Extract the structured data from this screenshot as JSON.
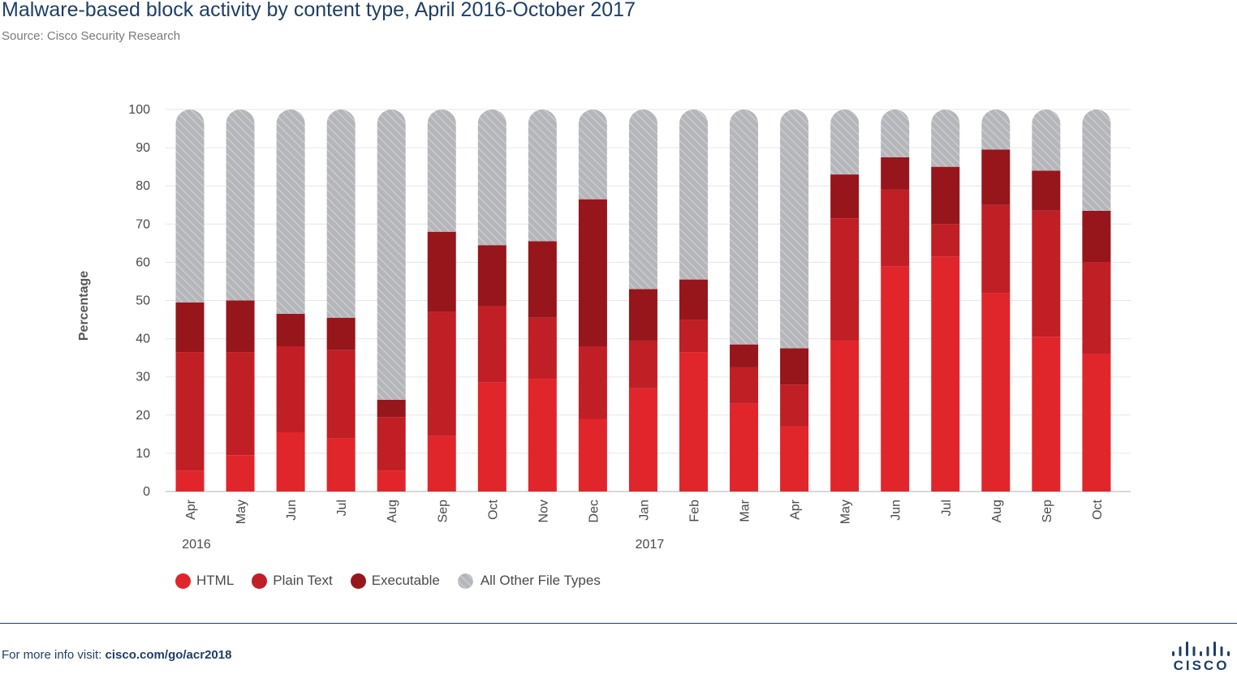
{
  "title": "Malware-based block activity by content type, April 2016-October 2017",
  "source": "Source: Cisco Security Research",
  "footer": {
    "prefix": "For more info visit: ",
    "link": "cisco.com/go/acr2018"
  },
  "logo": {
    "text": "CISCO"
  },
  "colors": {
    "html": "#e0262b",
    "plain_text": "#c01f25",
    "executable": "#96161b",
    "other": "#b5b6ba",
    "title": "#1e3f66"
  },
  "chart_data": {
    "type": "bar",
    "stacked": true,
    "title": "Malware-based block activity by content type, April 2016-October 2017",
    "ylabel": "Percentage",
    "ylim": [
      0,
      100
    ],
    "yticks": [
      0,
      10,
      20,
      30,
      40,
      50,
      60,
      70,
      80,
      90,
      100
    ],
    "grid": true,
    "legend_position": "bottom-left",
    "categories": [
      "Apr",
      "May",
      "Jun",
      "Jul",
      "Aug",
      "Sep",
      "Oct",
      "Nov",
      "Dec",
      "Jan",
      "Feb",
      "Mar",
      "Apr",
      "May",
      "Jun",
      "Jul",
      "Aug",
      "Sep",
      "Oct"
    ],
    "year_labels": [
      {
        "label": "2016",
        "category_index": 0
      },
      {
        "label": "2017",
        "category_index": 9
      }
    ],
    "series": [
      {
        "name": "HTML",
        "color": "#e0262b",
        "values": [
          5.5,
          9.5,
          15.5,
          14,
          5.5,
          14.5,
          28.5,
          29.5,
          19,
          27,
          36.5,
          23,
          17,
          39.5,
          59,
          61.5,
          52,
          40.5,
          36
        ]
      },
      {
        "name": "Plain Text",
        "color": "#c01f25",
        "values": [
          31,
          27,
          22.5,
          23,
          14,
          32.5,
          20,
          16,
          19,
          12.5,
          8.5,
          9.5,
          11,
          32,
          20,
          8.5,
          23,
          33,
          24
        ]
      },
      {
        "name": "Executable",
        "color": "#96161b",
        "values": [
          13,
          13.5,
          8.5,
          8.5,
          4.5,
          21,
          16,
          20,
          38.5,
          13.5,
          10.5,
          6,
          9.5,
          11.5,
          8.5,
          15,
          14.5,
          10.5,
          13.5
        ]
      },
      {
        "name": "All Other File Types",
        "color": "#b5b6ba",
        "pattern": "diagonal-hatch",
        "values": [
          50.5,
          50,
          53.5,
          54.5,
          76,
          32,
          35.5,
          34.5,
          23.5,
          47,
          44.5,
          61.5,
          62.5,
          17,
          12.5,
          15,
          10.5,
          16,
          26.5
        ]
      }
    ]
  }
}
